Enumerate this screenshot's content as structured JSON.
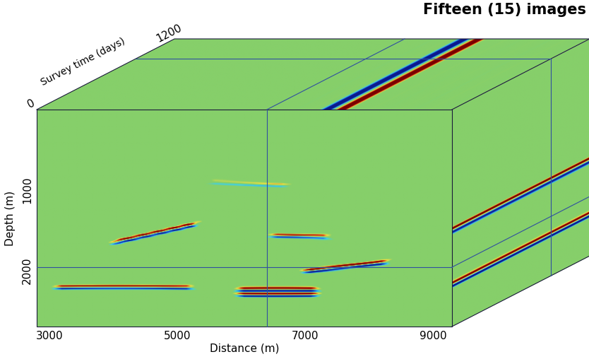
{
  "chart_data": {
    "type": "cube",
    "title": "Fifteen (15) images",
    "xlabel": "Distance (m)",
    "ylabel": "Depth (m)",
    "zlabel": "Survey time (days)",
    "xlim": [
      2800,
      9300
    ],
    "xticks": [
      3000,
      5000,
      7000,
      9000
    ],
    "ylim": [
      0,
      2700
    ],
    "yticks": [
      1000,
      2000
    ],
    "zlim": [
      0,
      1200
    ],
    "zticks": [
      0,
      1200
    ]
  }
}
